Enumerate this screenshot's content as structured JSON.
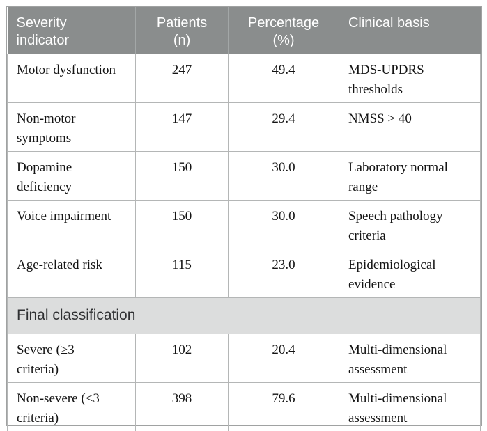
{
  "table": {
    "name": "Severity classification table",
    "colors": {
      "header_bg": "#8a8d8d",
      "header_text": "#ffffff",
      "section_bg": "#dcdddd",
      "body_text": "#141414",
      "grid_border": "#b4b6b6",
      "outer_border": "#a0a2a2"
    },
    "header": {
      "col1": "Severity\nindicator",
      "col2": "Patients\n(n)",
      "col3": "Percentage\n(%)",
      "col4": "Clinical basis"
    },
    "rows": [
      {
        "indicator": "Motor dysfunction",
        "patients": "247",
        "percentage": "49.4",
        "basis": "MDS-UPDRS\nthresholds"
      },
      {
        "indicator": "Non-motor\nsymptoms",
        "patients": "147",
        "percentage": "29.4",
        "basis": "NMSS > 40"
      },
      {
        "indicator": "Dopamine\ndeficiency",
        "patients": "150",
        "percentage": "30.0",
        "basis": "Laboratory normal\nrange"
      },
      {
        "indicator": "Voice impairment",
        "patients": "150",
        "percentage": "30.0",
        "basis": "Speech pathology\ncriteria"
      },
      {
        "indicator": "Age-related risk",
        "patients": "115",
        "percentage": "23.0",
        "basis": "Epidemiological\nevidence"
      }
    ],
    "section": {
      "label": "Final classification"
    },
    "final_rows": [
      {
        "indicator": "Severe (≥3\ncriteria)",
        "patients": "102",
        "percentage": "20.4",
        "basis": "Multi-dimensional\nassessment"
      },
      {
        "indicator": "Non-severe (<3\ncriteria)",
        "patients": "398",
        "percentage": "79.6",
        "basis": "Multi-dimensional\nassessment"
      }
    ]
  }
}
